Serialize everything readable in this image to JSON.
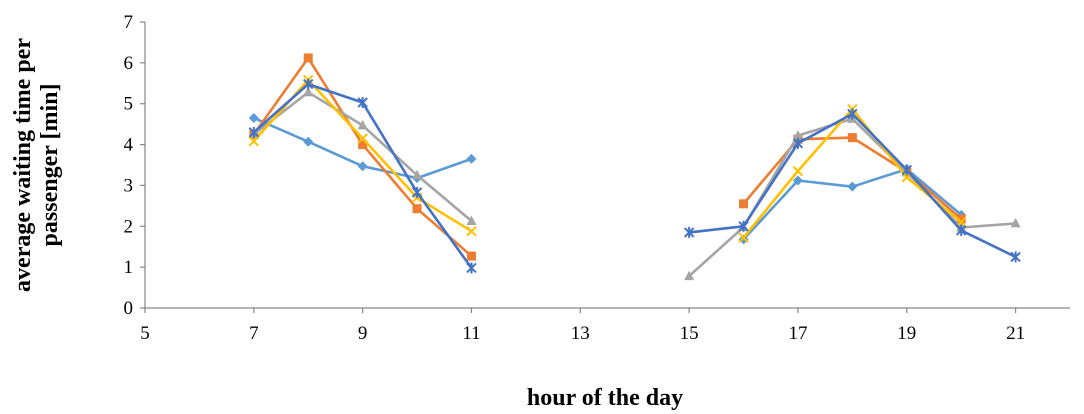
{
  "chart_data": {
    "type": "line",
    "xlabel": "hour of the day",
    "ylabel_lines": [
      "average waiting time per",
      "passenger [min]"
    ],
    "xlim": [
      5,
      22
    ],
    "ylim": [
      0,
      7
    ],
    "xticks": [
      5,
      7,
      9,
      11,
      13,
      15,
      17,
      19,
      21
    ],
    "yticks": [
      0,
      1,
      2,
      3,
      4,
      5,
      6,
      7
    ],
    "legend": "none",
    "grid": false,
    "series": [
      {
        "color": "#5b9bd5",
        "marker": "diamond",
        "segments": [
          [
            [
              7,
              4.65
            ],
            [
              8,
              4.07
            ],
            [
              9,
              3.47
            ],
            [
              10,
              3.18
            ],
            [
              11,
              3.65
            ]
          ],
          [
            [
              16,
              1.68
            ],
            [
              17,
              3.12
            ],
            [
              18,
              2.97
            ],
            [
              19,
              3.4
            ],
            [
              20,
              2.28
            ]
          ]
        ]
      },
      {
        "color": "#ed7d31",
        "marker": "square",
        "segments": [
          [
            [
              7,
              4.25
            ],
            [
              8,
              6.12
            ],
            [
              9,
              4.0
            ],
            [
              10,
              2.43
            ],
            [
              11,
              1.27
            ]
          ],
          [
            [
              16,
              2.55
            ],
            [
              17,
              4.13
            ],
            [
              18,
              4.17
            ],
            [
              19,
              3.33
            ],
            [
              20,
              2.18
            ]
          ]
        ]
      },
      {
        "color": "#a5a5a5",
        "marker": "triangle",
        "segments": [
          [
            [
              7,
              4.25
            ],
            [
              8,
              5.28
            ],
            [
              9,
              4.47
            ],
            [
              10,
              3.25
            ],
            [
              11,
              2.13
            ]
          ],
          [
            [
              15,
              0.78
            ],
            [
              16,
              1.98
            ],
            [
              17,
              4.22
            ],
            [
              18,
              4.63
            ],
            [
              19,
              3.32
            ],
            [
              20,
              1.97
            ],
            [
              21,
              2.07
            ]
          ]
        ]
      },
      {
        "color": "#ffc000",
        "marker": "x",
        "segments": [
          [
            [
              7,
              4.08
            ],
            [
              8,
              5.58
            ],
            [
              9,
              4.15
            ],
            [
              10,
              2.7
            ],
            [
              11,
              1.88
            ]
          ],
          [
            [
              16,
              1.72
            ],
            [
              17,
              3.35
            ],
            [
              18,
              4.87
            ],
            [
              19,
              3.2
            ],
            [
              20,
              2.1
            ]
          ]
        ]
      },
      {
        "color": "#4472c4",
        "marker": "star",
        "segments": [
          [
            [
              7,
              4.3
            ],
            [
              8,
              5.48
            ],
            [
              9,
              5.03
            ],
            [
              10,
              2.83
            ],
            [
              11,
              0.98
            ]
          ],
          [
            [
              15,
              1.85
            ],
            [
              16,
              2.0
            ],
            [
              17,
              4.03
            ],
            [
              18,
              4.75
            ],
            [
              19,
              3.38
            ],
            [
              20,
              1.9
            ],
            [
              21,
              1.25
            ]
          ]
        ]
      }
    ]
  }
}
